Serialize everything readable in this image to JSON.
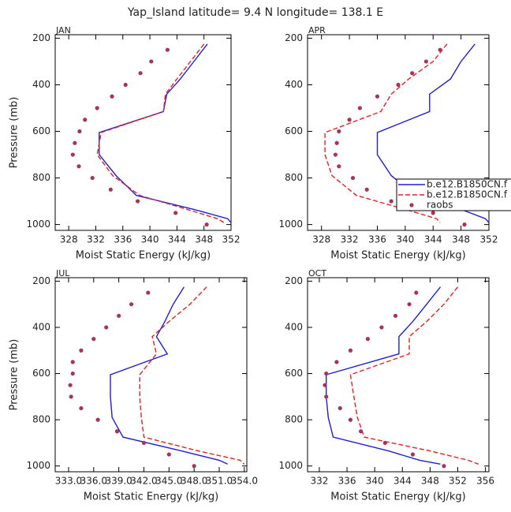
{
  "title": "Yap_Island  latitude= 9.4 N longitude= 138.1 E",
  "chart_data": [
    {
      "type": "line",
      "label": "JAN",
      "ylabel": "Pressure (mb)",
      "xlabel": "Moist Static Energy (kJ/kg)",
      "xlim": [
        326,
        352
      ],
      "xticks": [
        328,
        332,
        336,
        340,
        344,
        348,
        352
      ],
      "ylim": [
        185,
        1025
      ],
      "y_inverted": true,
      "yticks": [
        200,
        400,
        600,
        800,
        1000
      ],
      "series": [
        {
          "color": "#1f1fd6",
          "dash": false,
          "mode": "lines",
          "levels": [
            225,
            300,
            375,
            440,
            515,
            605,
            700,
            790,
            875,
            935,
            975,
            992
          ],
          "values": [
            348.5,
            346.5,
            344.5,
            342.5,
            342.0,
            332.5,
            332.5,
            335.0,
            338.0,
            346.5,
            351.5,
            352.0
          ]
        },
        {
          "color": "#e8201e",
          "dash": true,
          "mode": "lines",
          "levels": [
            225,
            300,
            375,
            440,
            515,
            605,
            700,
            790,
            875,
            935,
            975,
            992
          ],
          "values": [
            348.0,
            346.0,
            344.0,
            342.3,
            342.0,
            332.8,
            332.2,
            334.5,
            338.5,
            345.5,
            350.0,
            351.0
          ]
        },
        {
          "color": "#a8325e",
          "mode": "markers",
          "levels": [
            250,
            300,
            350,
            400,
            450,
            500,
            550,
            600,
            650,
            700,
            750,
            800,
            850,
            900,
            950,
            1000
          ],
          "values": [
            342.6,
            340.2,
            338.6,
            336.4,
            334.4,
            332.2,
            330.4,
            329.6,
            328.9,
            328.6,
            329.5,
            331.5,
            334.2,
            338.2,
            343.8,
            348.4
          ]
        }
      ]
    },
    {
      "type": "line",
      "label": "APR",
      "xlabel": "Moist Static Energy (kJ/kg)",
      "xlim": [
        326,
        352
      ],
      "xticks": [
        328,
        332,
        336,
        340,
        344,
        348,
        352
      ],
      "ylim": [
        185,
        1025
      ],
      "y_inverted": true,
      "yticks": [
        200,
        400,
        600,
        800,
        1000
      ],
      "legend": true,
      "series": [
        {
          "name": "b.e12.B1850CN.f",
          "color": "#1f1fd6",
          "dash": false,
          "mode": "lines",
          "levels": [
            225,
            300,
            375,
            440,
            515,
            605,
            700,
            790,
            875,
            935,
            975,
            992
          ],
          "values": [
            350.0,
            348.0,
            346.5,
            343.5,
            343.5,
            336.0,
            336.0,
            338.0,
            341.5,
            348.0,
            351.5,
            352.0
          ]
        },
        {
          "name": "b.e12.B1850CN.f",
          "color": "#e8201e",
          "dash": true,
          "mode": "lines",
          "levels": [
            225,
            300,
            375,
            440,
            515,
            605,
            700,
            790,
            875,
            935,
            975,
            992
          ],
          "values": [
            346.0,
            344.0,
            340.5,
            338.0,
            336.5,
            328.5,
            328.5,
            329.5,
            333.0,
            340.0,
            344.5,
            345.0
          ]
        },
        {
          "name": "raobs",
          "color": "#a8325e",
          "mode": "markers",
          "levels": [
            250,
            300,
            350,
            400,
            450,
            500,
            550,
            600,
            650,
            700,
            750,
            800,
            850,
            900,
            950,
            1000
          ],
          "values": [
            345.0,
            343.0,
            341.0,
            339.0,
            336.0,
            333.5,
            332.0,
            330.5,
            330.2,
            330.0,
            330.5,
            332.5,
            334.5,
            338.0,
            344.0,
            348.5
          ]
        }
      ]
    },
    {
      "type": "line",
      "label": "JUL",
      "ylabel": "Pressure (mb)",
      "xlabel": "Moist Static Energy (kJ/kg)",
      "xlim": [
        331.4,
        354.3
      ],
      "xticks": [
        {
          "value": 333,
          "label": "333.0"
        },
        {
          "value": 336,
          "label": "336.0"
        },
        {
          "value": 339,
          "label": "339.0"
        },
        {
          "value": 342,
          "label": "342.0"
        },
        {
          "value": 345,
          "label": "345.0"
        },
        {
          "value": 348,
          "label": "348.0"
        },
        {
          "value": 351,
          "label": "351.0"
        },
        {
          "value": 354,
          "label": "354.0"
        }
      ],
      "ylim": [
        185,
        1025
      ],
      "y_inverted": true,
      "yticks": [
        200,
        400,
        600,
        800,
        1000
      ],
      "series": [
        {
          "color": "#1f1fd6",
          "dash": false,
          "mode": "lines",
          "levels": [
            225,
            300,
            375,
            440,
            515,
            605,
            700,
            790,
            875,
            935,
            975,
            992
          ],
          "values": [
            346.8,
            345.5,
            344.5,
            343.5,
            344.8,
            338.0,
            338.0,
            338.2,
            339.5,
            346.5,
            351.0,
            352.0
          ]
        },
        {
          "color": "#e8201e",
          "dash": true,
          "mode": "lines",
          "levels": [
            225,
            300,
            375,
            440,
            515,
            605,
            700,
            790,
            875,
            935,
            975,
            992
          ],
          "values": [
            349.5,
            347.5,
            345.0,
            343.0,
            343.5,
            341.5,
            341.5,
            341.7,
            342.0,
            348.5,
            353.5,
            354.0
          ]
        },
        {
          "color": "#a8325e",
          "mode": "markers",
          "levels": [
            250,
            300,
            350,
            400,
            450,
            500,
            550,
            600,
            650,
            700,
            750,
            800,
            850,
            900,
            950,
            1000
          ],
          "values": [
            342.5,
            340.5,
            339.0,
            337.5,
            336.0,
            334.5,
            333.5,
            333.5,
            333.2,
            333.3,
            334.5,
            336.5,
            338.8,
            342.0,
            345.0,
            348.0
          ]
        }
      ]
    },
    {
      "type": "line",
      "label": "OCT",
      "xlabel": "Moist Static Energy (kJ/kg)",
      "xlim": [
        330.3,
        356.5
      ],
      "xticks": [
        332,
        336,
        340,
        344,
        348,
        352,
        356
      ],
      "ylim": [
        185,
        1025
      ],
      "y_inverted": true,
      "yticks": [
        200,
        400,
        600,
        800,
        1000
      ],
      "series": [
        {
          "color": "#1f1fd6",
          "dash": false,
          "mode": "lines",
          "levels": [
            225,
            300,
            375,
            440,
            515,
            605,
            700,
            790,
            875,
            935,
            975,
            992
          ],
          "values": [
            349.5,
            347.5,
            345.5,
            343.5,
            343.5,
            333.0,
            333.0,
            333.3,
            334.0,
            342.0,
            346.5,
            349.5
          ]
        },
        {
          "color": "#e8201e",
          "dash": true,
          "mode": "lines",
          "levels": [
            225,
            300,
            375,
            440,
            515,
            605,
            700,
            790,
            875,
            935,
            975,
            992
          ],
          "values": [
            352.0,
            350.0,
            347.5,
            345.0,
            345.0,
            336.5,
            337.0,
            337.5,
            338.5,
            348.0,
            353.5,
            355.0
          ]
        },
        {
          "color": "#a8325e",
          "mode": "markers",
          "levels": [
            250,
            300,
            350,
            400,
            450,
            500,
            550,
            600,
            650,
            700,
            750,
            800,
            850,
            900,
            950,
            1000
          ],
          "values": [
            346.0,
            345.0,
            343.0,
            341.0,
            339.0,
            336.5,
            334.5,
            333.0,
            332.8,
            333.0,
            335.0,
            336.5,
            338.0,
            341.5,
            345.5,
            350.0
          ]
        }
      ]
    }
  ]
}
